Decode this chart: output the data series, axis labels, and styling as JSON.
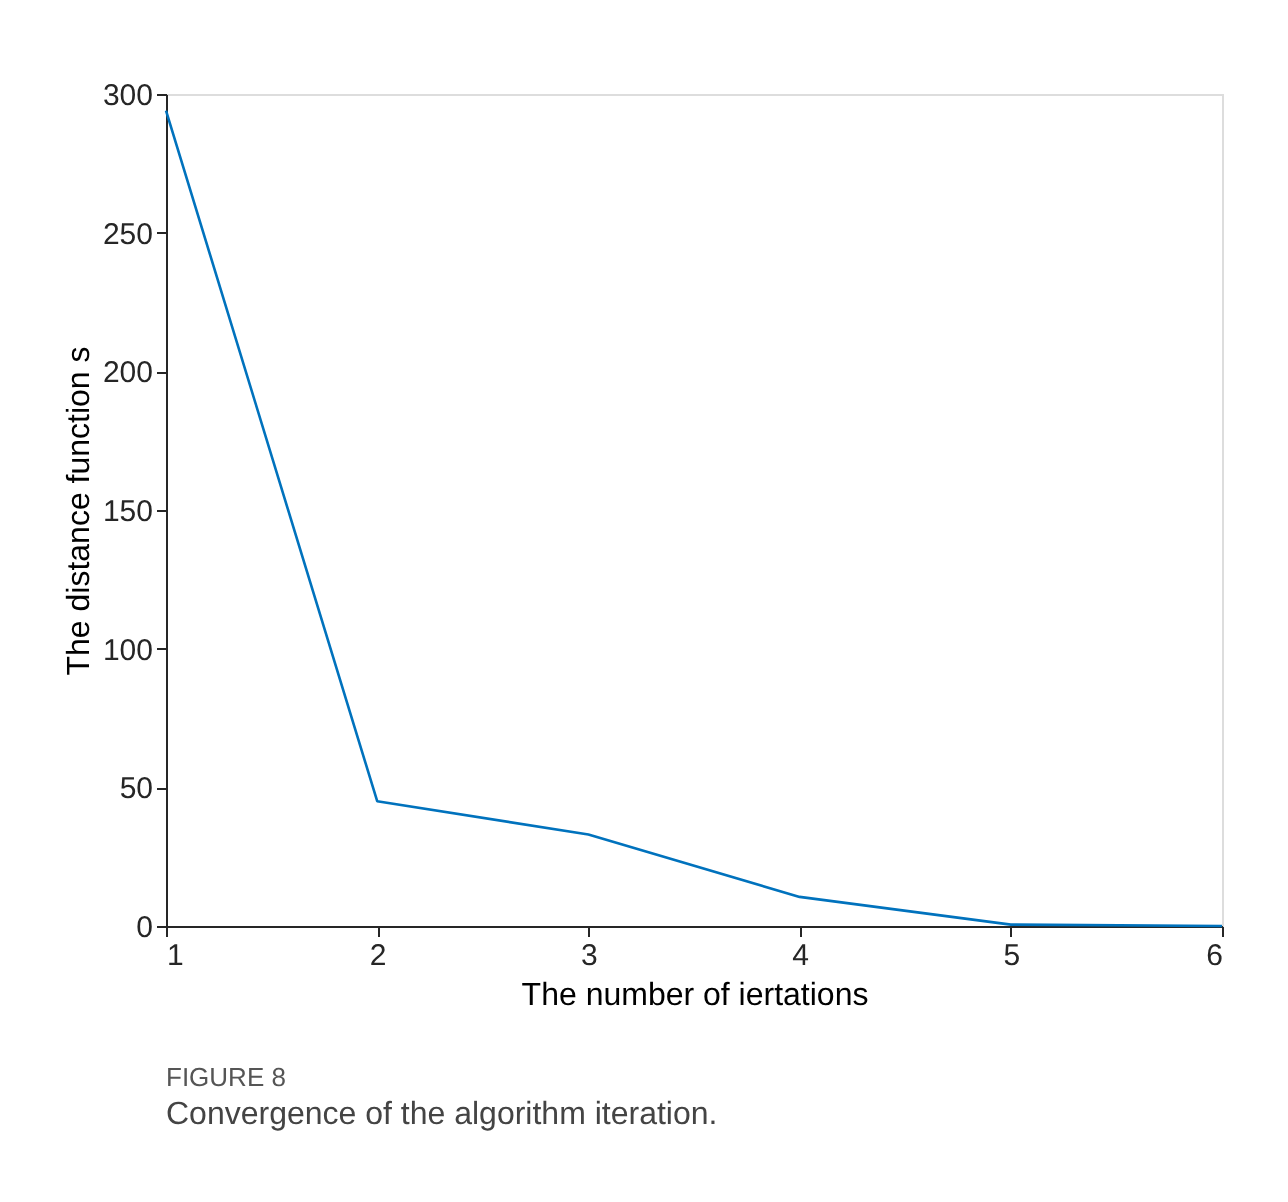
{
  "chart_data": {
    "type": "line",
    "xlabel": "The number of iertations",
    "ylabel": "The distance function s",
    "x": [
      1,
      2,
      3,
      4,
      5,
      6
    ],
    "series": [
      {
        "color": "#0072bd",
        "values": [
          294,
          45,
          33,
          10.5,
          0.5,
          0
        ]
      }
    ],
    "xlim": [
      1,
      6
    ],
    "xticks": [
      1,
      2,
      3,
      4,
      5,
      6
    ],
    "ylim": [
      0,
      300
    ],
    "yticks": [
      0,
      50,
      100,
      150,
      200,
      250,
      300
    ],
    "grid": false,
    "legend": false,
    "marker": "none",
    "line_style": "solid",
    "annotations": [
      "FIGURE 8",
      "Convergence of the algorithm iteration."
    ]
  }
}
